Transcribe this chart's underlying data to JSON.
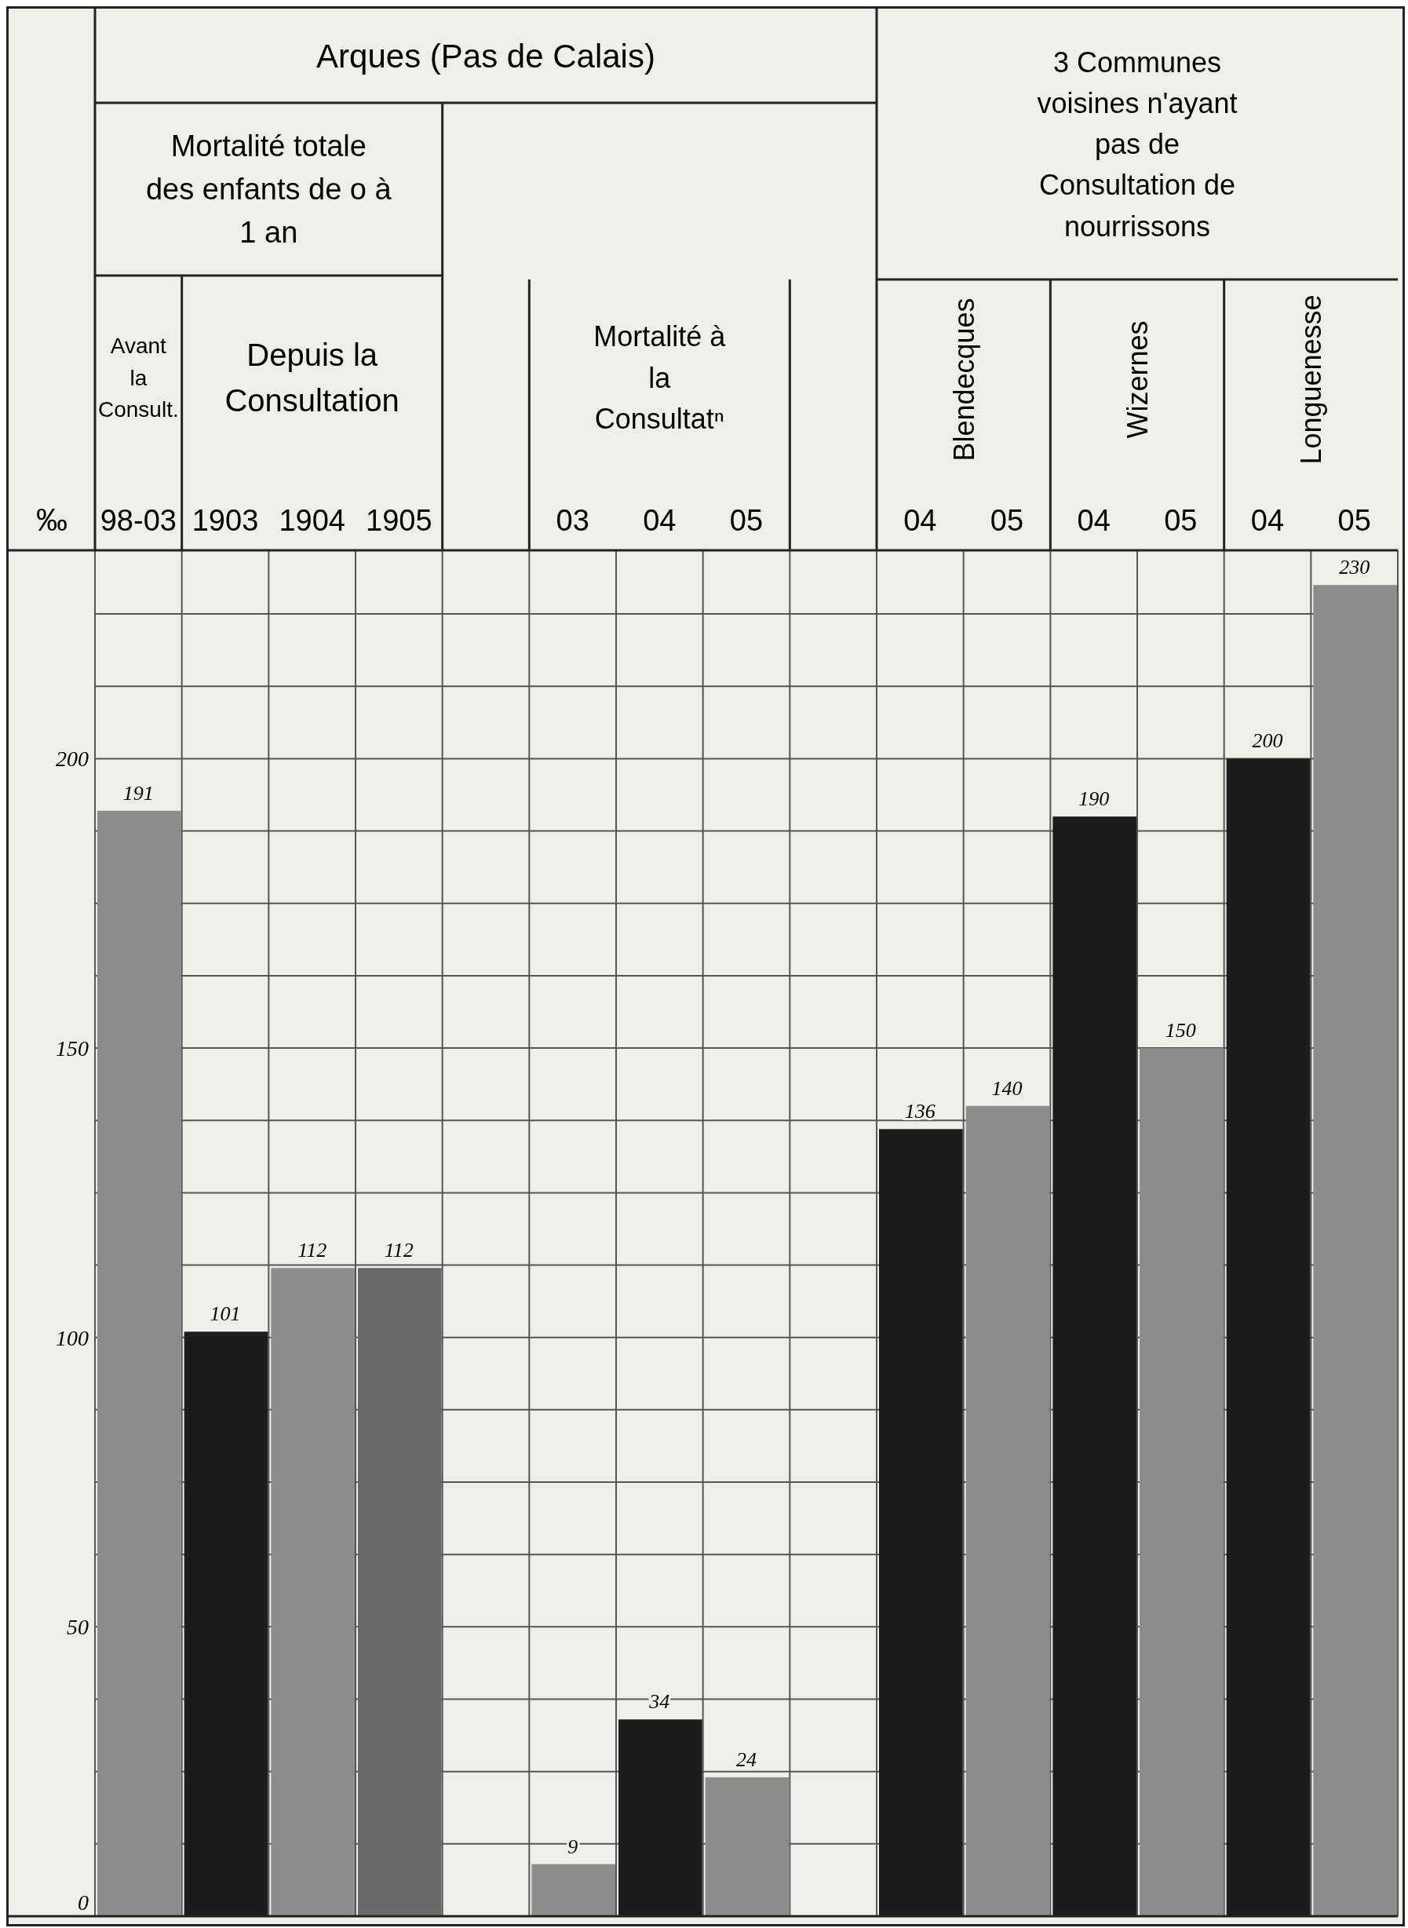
{
  "chart_data": {
    "type": "bar",
    "ylabel": "‰",
    "categories": [
      "98-03",
      "1903",
      "1904",
      "1905",
      null,
      "03",
      "04",
      "05",
      null,
      "04",
      "05",
      "04",
      "05",
      "04",
      "05"
    ],
    "values": [
      191,
      101,
      112,
      112,
      null,
      9,
      34,
      24,
      null,
      136,
      140,
      190,
      150,
      200,
      230
    ],
    "colors": [
      "#8c8c8c",
      "#1c1c1c",
      "#8c8c8c",
      "#6a6a6a",
      null,
      "#8c8c8c",
      "#1c1c1c",
      "#8c8c8c",
      null,
      "#1c1c1c",
      "#8c8c8c",
      "#1c1c1c",
      "#8c8c8c",
      "#1c1c1c",
      "#8c8c8c"
    ],
    "data_labels": true,
    "ylim": [
      0,
      236
    ],
    "yticks": [
      0,
      {
        "value": 12.5,
        "label": null
      },
      {
        "value": 25,
        "label": null
      },
      {
        "value": 37.5,
        "label": null
      },
      50,
      {
        "value": 62.5,
        "label": null
      },
      {
        "value": 75,
        "label": null
      },
      {
        "value": 87.5,
        "label": null
      },
      100,
      {
        "value": 112.5,
        "label": null
      },
      {
        "value": 125,
        "label": null
      },
      {
        "value": 137.5,
        "label": null
      },
      150,
      {
        "value": 162.5,
        "label": null
      },
      {
        "value": 175,
        "label": null
      },
      {
        "value": 187.5,
        "label": null
      },
      200,
      {
        "value": 212.5,
        "label": null
      },
      {
        "value": 225,
        "label": null
      }
    ],
    "grid": true,
    "annotations": [
      "Arques (Pas de Calais)",
      "Mortalité totale des enfants de o à 1 an",
      "Avant la Consult.",
      "Depuis la Consultation",
      "Mortalité à la Consultatⁿ",
      "3 Communes voisines n'ayant pas de Consultation de nourrissons",
      "Blendecques",
      "Wizernes",
      "Longuenesse"
    ]
  }
}
